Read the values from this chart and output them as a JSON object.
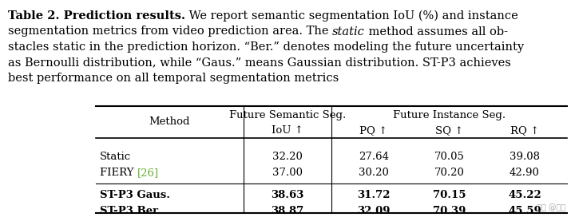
{
  "methods": [
    "Static",
    "FIERY",
    "ST-P3 Gaus.",
    "ST-P3 Ber."
  ],
  "fiery_ref": "[26]",
  "fiery_ref_color": "#6aaf32",
  "bold_rows": [
    2,
    3
  ],
  "data": [
    [
      32.2,
      27.64,
      70.05,
      39.08
    ],
    [
      37.0,
      30.2,
      70.2,
      42.9
    ],
    [
      38.63,
      31.72,
      70.15,
      45.22
    ],
    [
      38.87,
      32.09,
      70.39,
      45.59
    ]
  ],
  "background_color": "#ffffff",
  "watermark": "知乎 @黄浩",
  "cap_fs": 10.5,
  "tbl_fs": 9.5
}
